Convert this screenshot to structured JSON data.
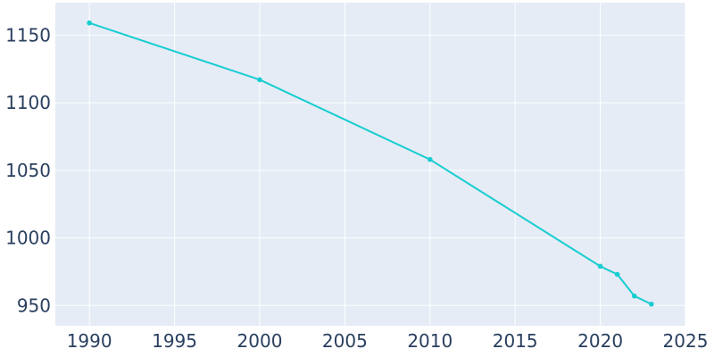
{
  "chart_data": {
    "type": "line",
    "title": "",
    "xlabel": "",
    "ylabel": "",
    "xlim": [
      1988,
      2025
    ],
    "ylim": [
      935,
      1174
    ],
    "x_ticks": [
      1990,
      1995,
      2000,
      2005,
      2010,
      2015,
      2020,
      2025
    ],
    "y_ticks": [
      950,
      1000,
      1050,
      1100,
      1150
    ],
    "grid": true,
    "legend": "none",
    "plot_background": "#e5ecf6",
    "grid_color": "#ffffff",
    "series": [
      {
        "color": "#17cdd0",
        "x": [
          1990,
          2000,
          2010,
          2020,
          2021,
          2022,
          2023
        ],
        "y": [
          1159,
          1117,
          1058,
          979,
          973,
          957,
          951
        ]
      }
    ]
  }
}
